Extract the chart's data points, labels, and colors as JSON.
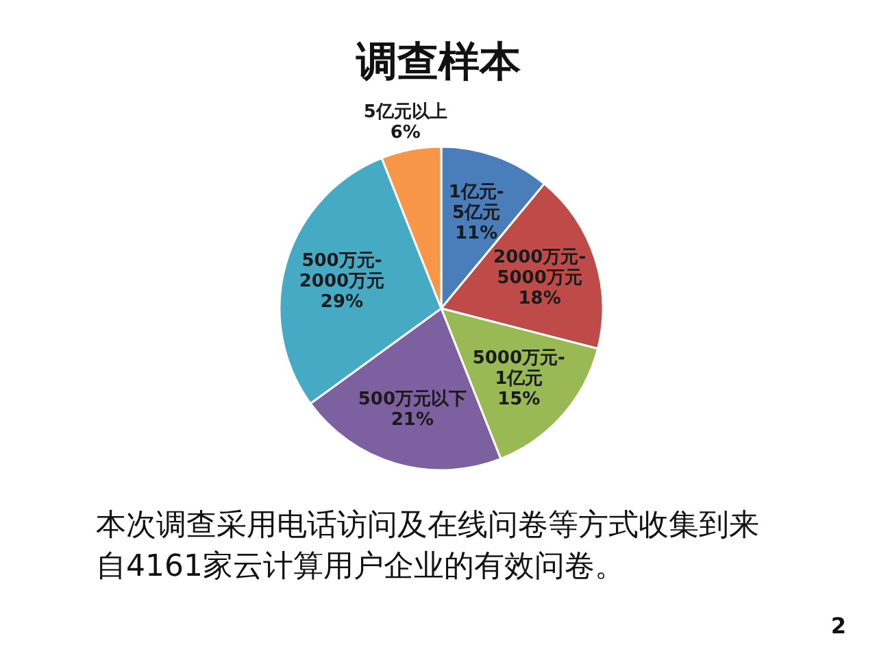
{
  "chart_data": {
    "type": "pie",
    "title": "调查样本",
    "categories": [
      "1亿元-5亿元",
      "2000万元-5000万元",
      "5000万元-1亿元",
      "500万元以下",
      "500万元-2000万元",
      "5亿元以上"
    ],
    "values": [
      11,
      18,
      15,
      21,
      29,
      6
    ],
    "value_labels": [
      "11%",
      "18%",
      "15%",
      "21%",
      "29%",
      "6%"
    ],
    "colors": [
      "#4a7ebb",
      "#be4b48",
      "#98b954",
      "#7d60a0",
      "#46aac5",
      "#f79646"
    ],
    "annotations": [
      "本次调查采用电话访问及在线问卷等方式收集到来自4161家云计算用户企业的有效问卷。",
      "2"
    ]
  }
}
